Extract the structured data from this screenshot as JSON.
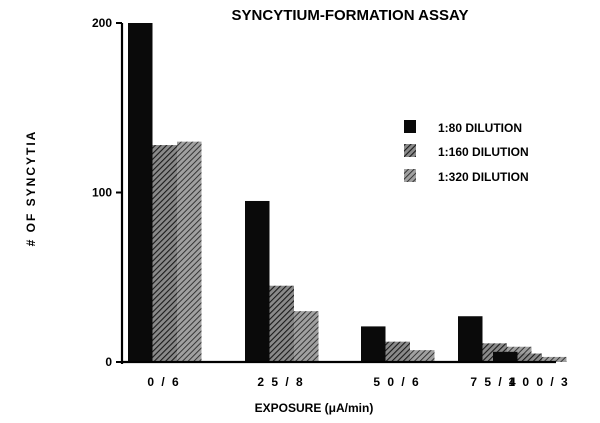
{
  "chart_data": {
    "type": "bar",
    "title": "SYNCYTIUM-FORMATION ASSAY",
    "xlabel": "EXPOSURE (μA/min)",
    "ylabel": "# OF SYNCYTIA",
    "categories": [
      "0 / 6",
      "2 5 / 8",
      "5 0 / 6",
      "7 5 / 4",
      "1 0 0 / 3"
    ],
    "yticks": [
      0,
      100,
      200
    ],
    "ylim": [
      0,
      200
    ],
    "grid": false,
    "legend_placement": "right",
    "series": [
      {
        "name": "1:80 DILUTION",
        "values": [
          200,
          95,
          21,
          27,
          6
        ],
        "color": "#0a0a0a",
        "fill": "solid"
      },
      {
        "name": "1:160 DILUTION",
        "values": [
          128,
          45,
          12,
          11,
          5
        ],
        "color": "#3a3a3a",
        "fill": "hatch"
      },
      {
        "name": "1:320 DILUTION",
        "values": [
          130,
          30,
          7,
          9,
          3
        ],
        "color": "#5a5a5a",
        "fill": "hatch"
      }
    ]
  }
}
